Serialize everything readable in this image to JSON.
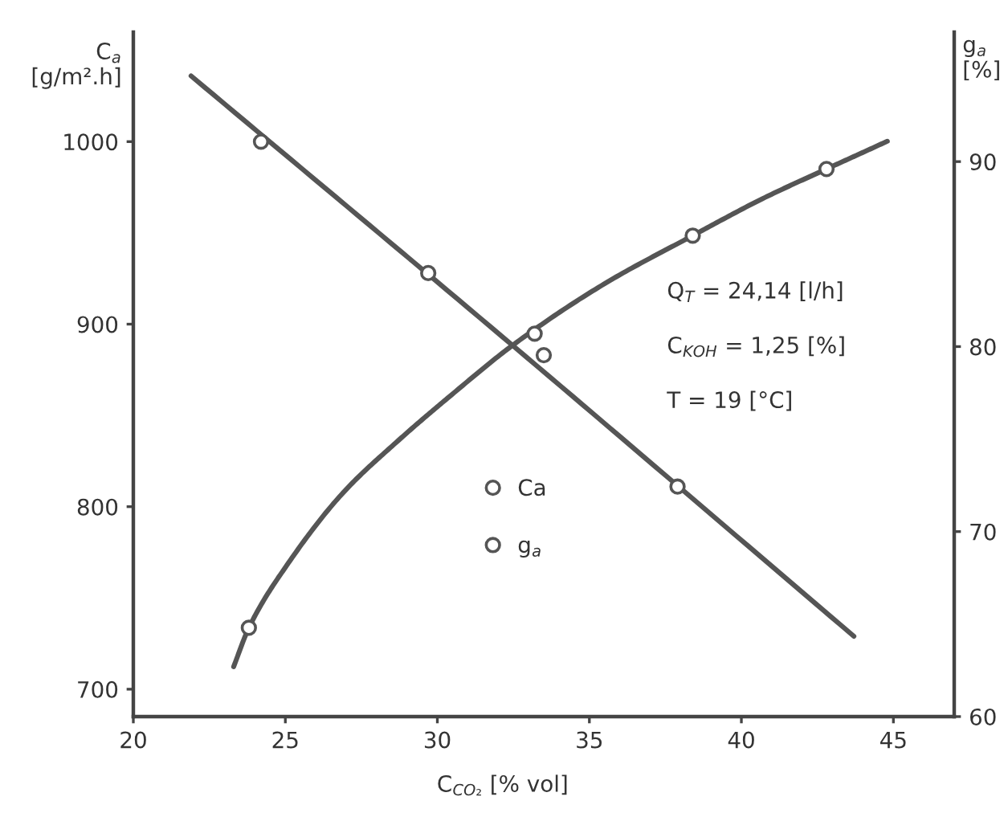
{
  "chart_data": {
    "type": "line",
    "xlabel": "C$_{CO₂}$ [% vol]",
    "ylabel": "C$_{a}$\n[g/m².h]",
    "y2label": "g$_{a}$\n[%]",
    "annotations": [
      "Q$_{T}$ = 24,14 [l/h]",
      "C$_{KOH}$ = 1,25 [%]",
      "T = 19 [°C]"
    ],
    "xlim": [
      20,
      47
    ],
    "xticks": [
      20,
      25,
      30,
      35,
      40,
      45
    ],
    "ylim": [
      685,
      1060
    ],
    "yticks": [
      700,
      800,
      900,
      1000
    ],
    "y2lim": [
      60,
      97
    ],
    "y2ticks": [
      60,
      70,
      80,
      90
    ],
    "legend": "center",
    "series": [
      {
        "type": "line",
        "axis": "y",
        "color": "#555555",
        "x": [
          21.9,
          32.5,
          43.7
        ],
        "values": [
          1036,
          888,
          729
        ]
      },
      {
        "name": "Ca",
        "type": "scatter",
        "axis": "y",
        "marker": "circle",
        "color": "#555555",
        "x": [
          24.2,
          29.7,
          33.5,
          37.9
        ],
        "values": [
          1000,
          928,
          883,
          811
        ]
      },
      {
        "axis": "y2",
        "color": "#555555",
        "x": [
          23.3,
          23.8,
          25.1,
          26.9,
          28.7,
          30.4,
          32.5,
          35.5,
          38.4,
          40.7,
          42.8,
          44.8
        ],
        "values": [
          62.7,
          64.8,
          68.3,
          72.1,
          74.9,
          77.3,
          80.1,
          83.4,
          86.0,
          88.0,
          89.6,
          91.1
        ]
      },
      {
        "name": "g$_{a}$",
        "type": "scatter",
        "axis": "y2",
        "marker": "circle",
        "color": "#555555",
        "x": [
          23.8,
          33.2,
          38.4,
          42.8
        ],
        "values": [
          64.8,
          80.7,
          86.0,
          89.6
        ]
      }
    ]
  }
}
